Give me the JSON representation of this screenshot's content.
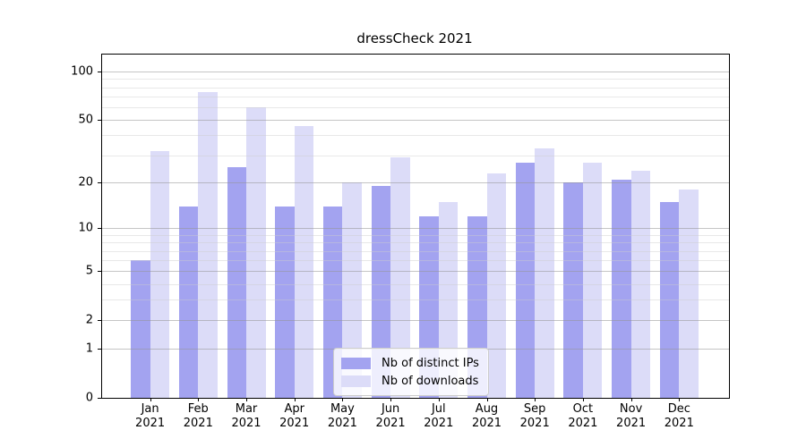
{
  "chart_data": {
    "type": "bar",
    "title": "dressCheck 2021",
    "categories": [
      "Jan",
      "Feb",
      "Mar",
      "Apr",
      "May",
      "Jun",
      "Jul",
      "Aug",
      "Sep",
      "Oct",
      "Nov",
      "Dec"
    ],
    "category_year": "2021",
    "series": [
      {
        "name": "Nb of distinct IPs",
        "color": "#a3a3f0",
        "values": [
          6,
          14,
          25,
          14,
          14,
          19,
          12,
          12,
          27,
          20,
          21,
          15
        ]
      },
      {
        "name": "Nb of downloads",
        "color": "#dcdcf8",
        "values": [
          32,
          75,
          60,
          46,
          20,
          29,
          15,
          23,
          33,
          27,
          24,
          18
        ]
      }
    ],
    "yscale": "log1p",
    "ylim": [
      0,
      128
    ],
    "yticks": [
      0,
      1,
      2,
      5,
      10,
      20,
      50,
      100
    ],
    "minor_yticks": [
      3,
      4,
      6,
      7,
      8,
      9,
      30,
      40,
      60,
      70,
      80,
      90
    ],
    "grid": true,
    "legend_position": "lower center"
  },
  "colors": {
    "background": "#ffffff",
    "axis": "#000000",
    "grid_major": "rgba(150,150,150,0.55)",
    "grid_minor": "rgba(205,205,205,0.45)"
  }
}
